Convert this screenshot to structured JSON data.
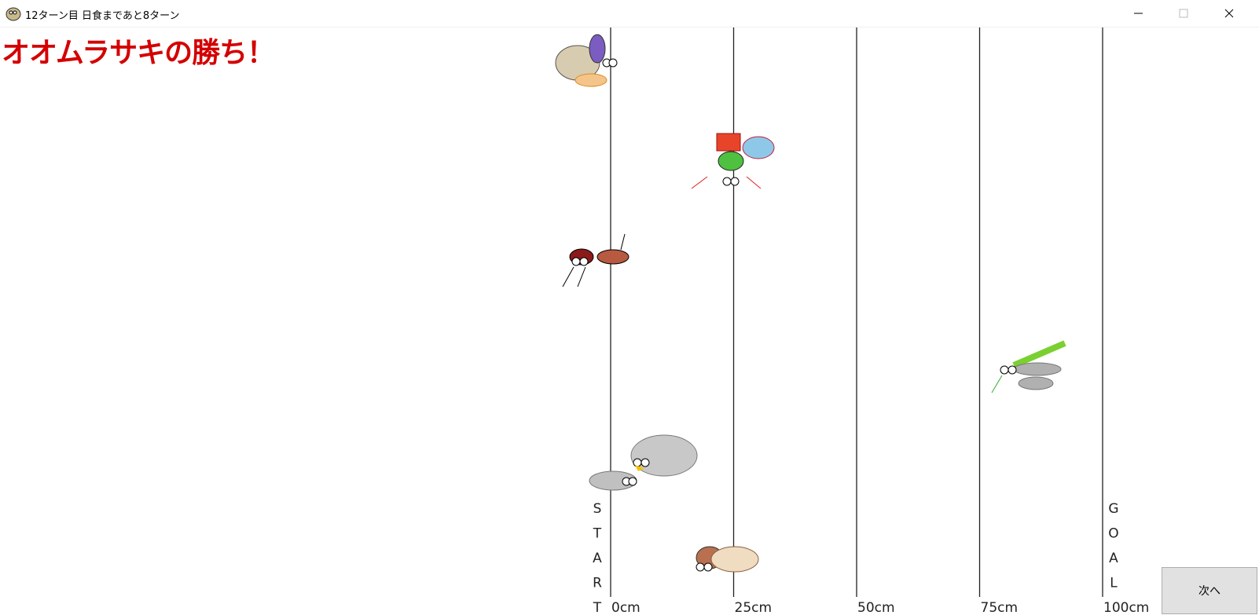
{
  "window": {
    "title": "12ターン目 日食まであと8ターン"
  },
  "heading": "オオムラサキの勝ち！",
  "track": {
    "labels": [
      "0cm",
      "25cm",
      "50cm",
      "75cm",
      "100cm"
    ],
    "start_letters": [
      "S",
      "T",
      "A",
      "R",
      "T"
    ],
    "goal_letters": [
      "G",
      "O",
      "A",
      "L"
    ]
  },
  "button": "次へ"
}
